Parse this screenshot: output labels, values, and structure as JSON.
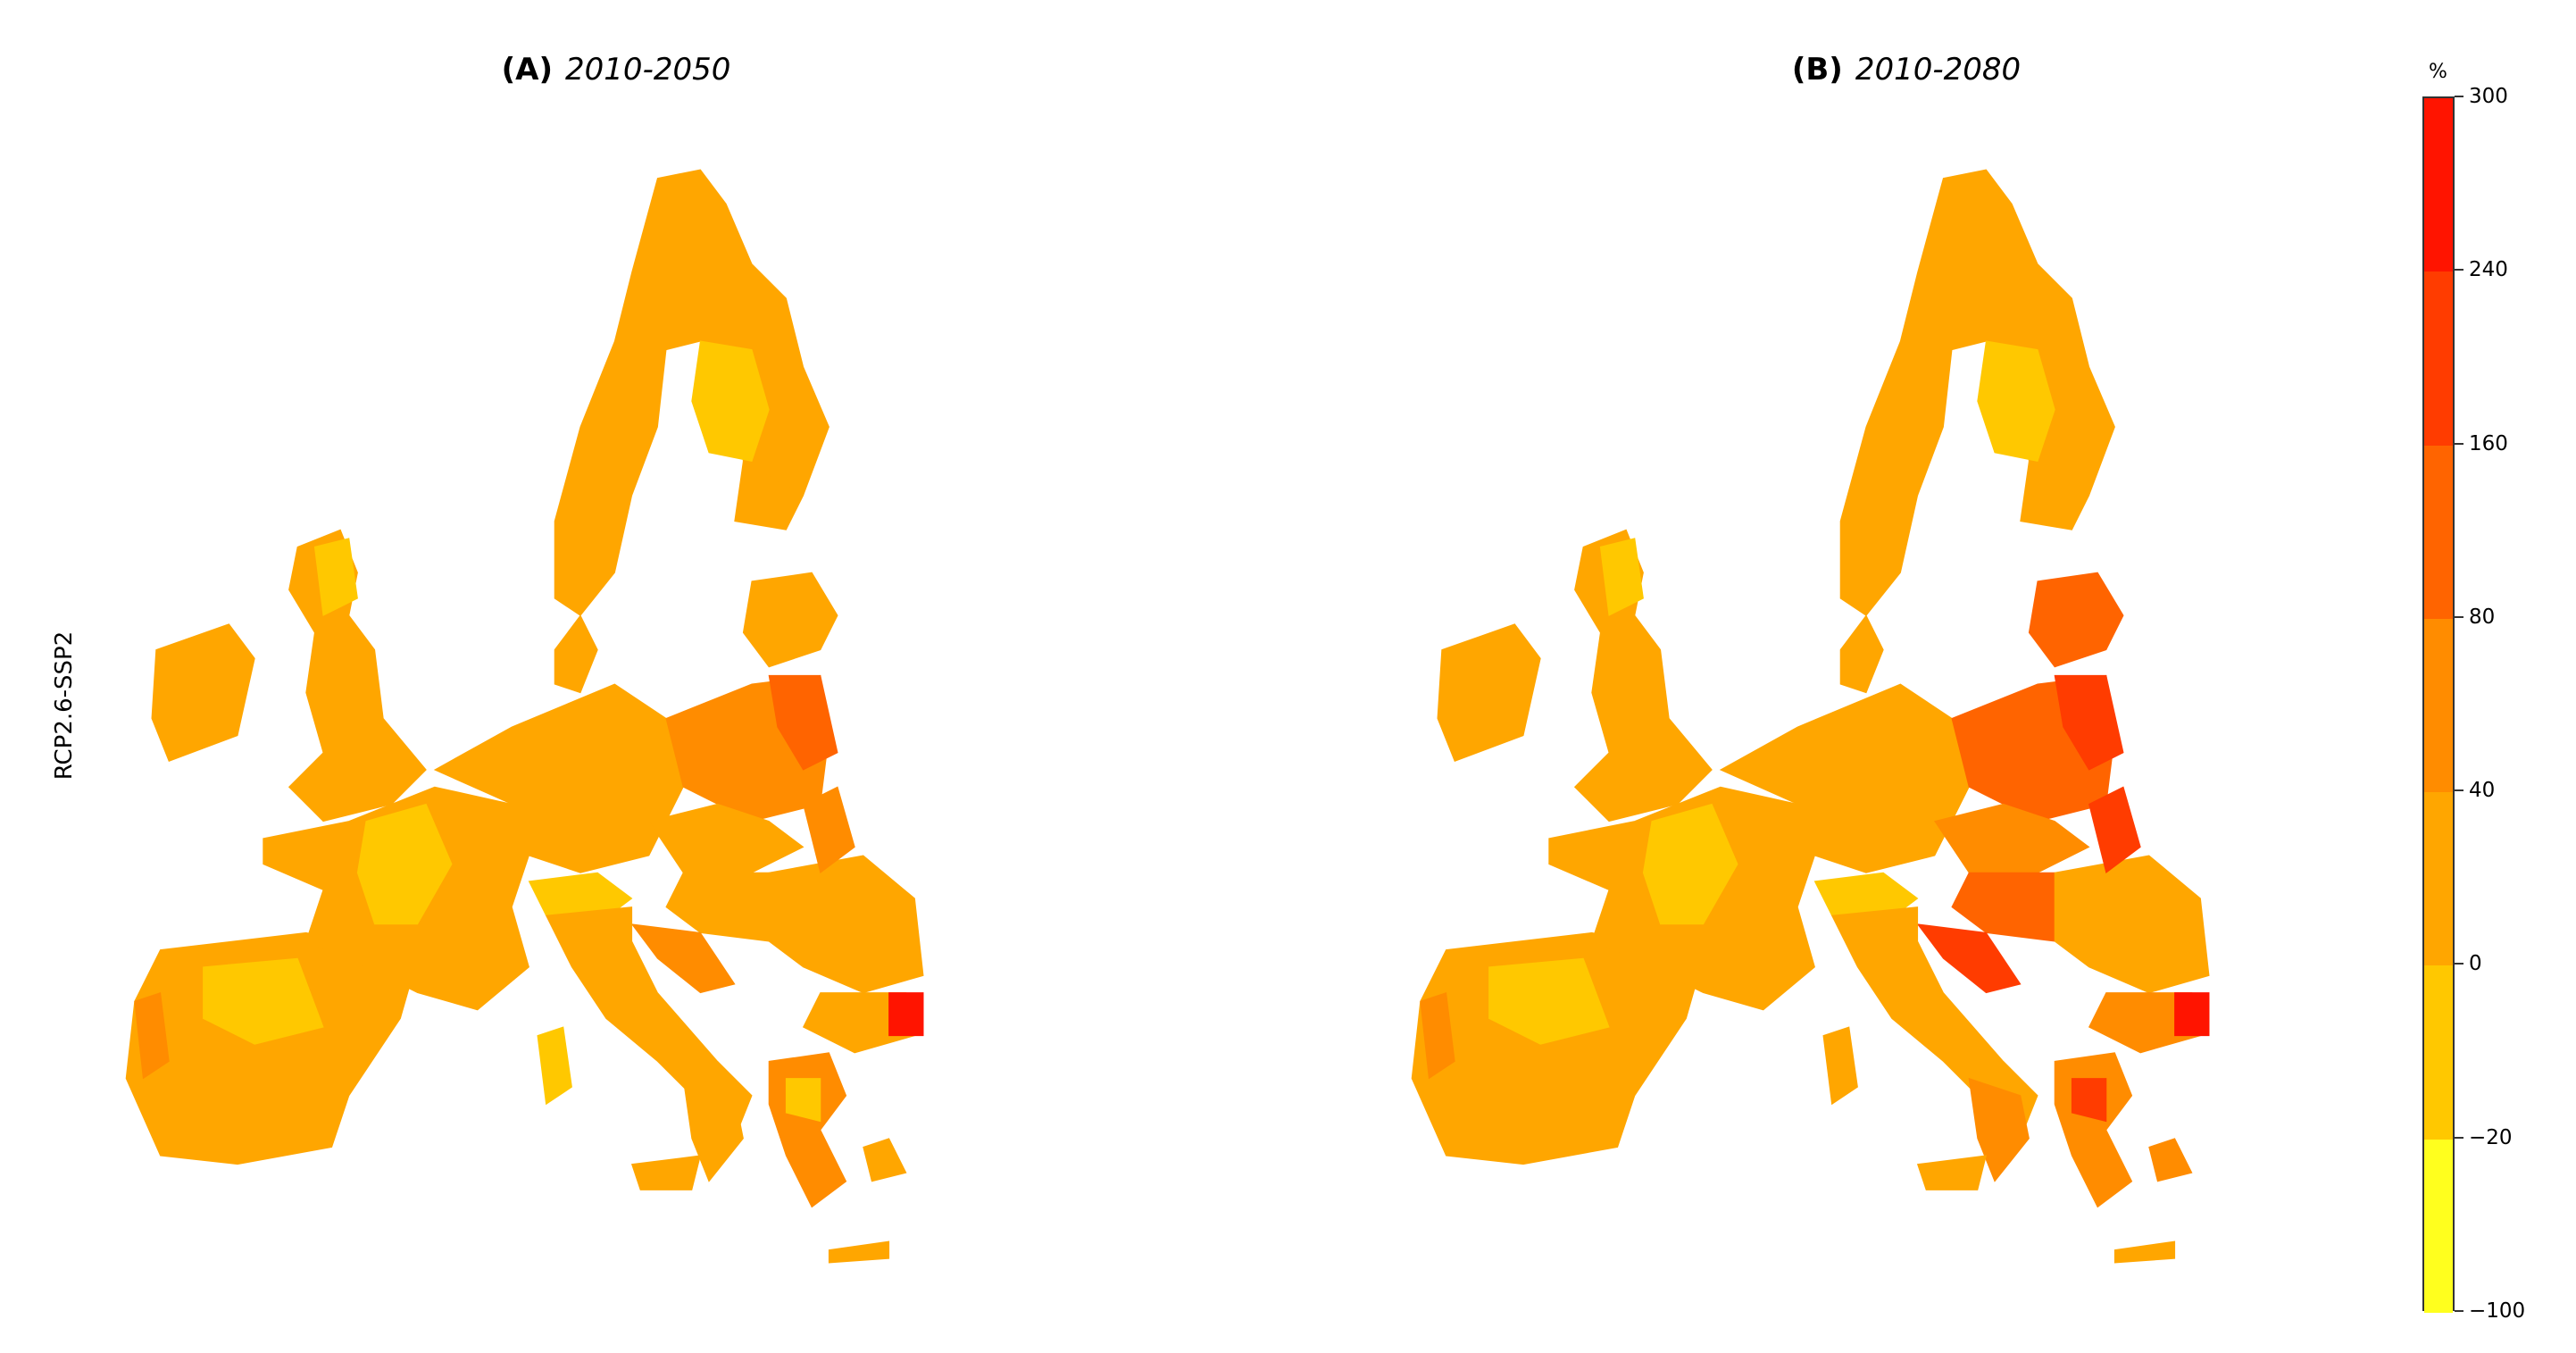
{
  "row_label": "RCP2.6-SSP2",
  "panels": [
    {
      "letter": "(A)",
      "years": "2010-2050"
    },
    {
      "letter": "(B)",
      "years": "2010-2080"
    }
  ],
  "legend": {
    "unit": "%",
    "ticks": [
      "300",
      "240",
      "160",
      "80",
      "40",
      "0",
      "−20",
      "−100"
    ],
    "bands": [
      {
        "from": "240",
        "to": "300",
        "color": "#ff1400"
      },
      {
        "from": "160",
        "to": "240",
        "color": "#ff3c00"
      },
      {
        "from": "80",
        "to": "160",
        "color": "#ff6400"
      },
      {
        "from": "40",
        "to": "80",
        "color": "#ff8c00"
      },
      {
        "from": "0",
        "to": "40",
        "color": "#ffa600"
      },
      {
        "from": "−20",
        "to": "0",
        "color": "#ffc800"
      },
      {
        "from": "−100",
        "to": "−20",
        "color": "#ffff1e"
      }
    ]
  }
}
